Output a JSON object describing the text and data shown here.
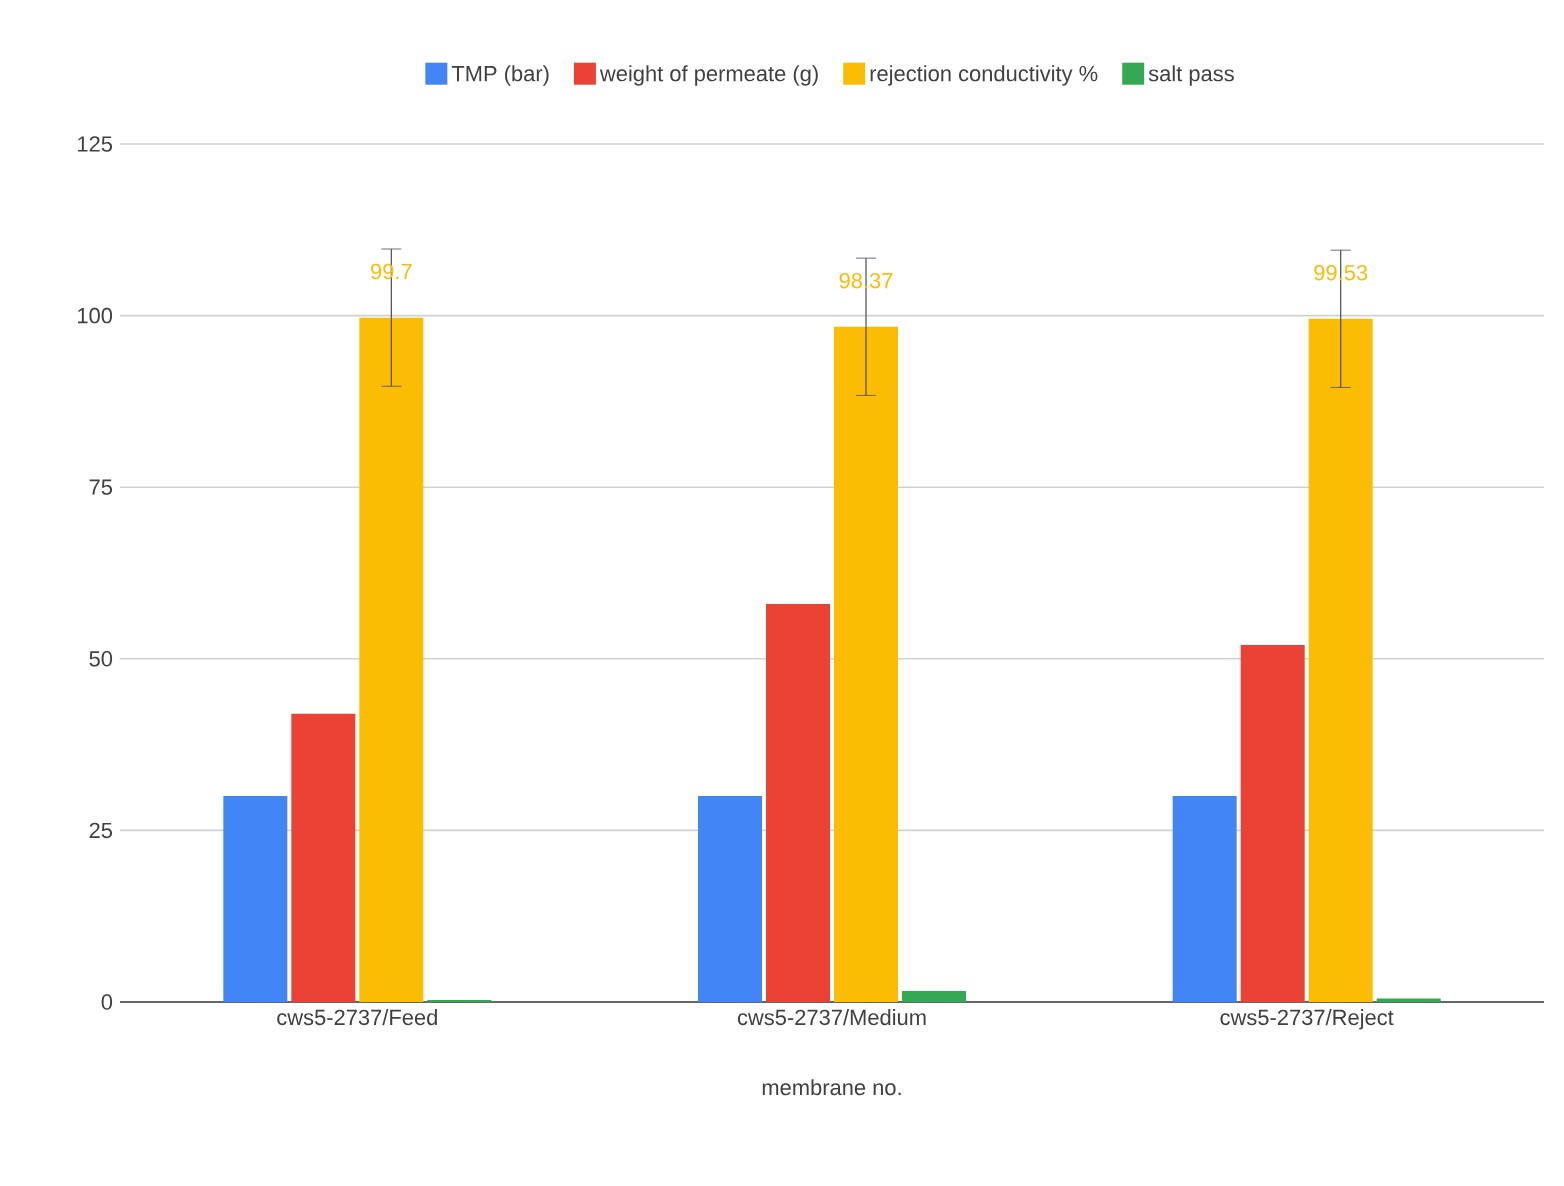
{
  "chart_data": {
    "type": "bar",
    "xlabel": "membrane no.",
    "categories": [
      "cws5-2737/Feed",
      "cws5-2737/Medium",
      "cws5-2737/Reject"
    ],
    "series": [
      {
        "name": "TMP (bar)",
        "color": "#4285f4",
        "values": [
          30,
          30,
          30
        ]
      },
      {
        "name": "weight of permeate (g)",
        "color": "#ea4335",
        "values": [
          42,
          58,
          52
        ]
      },
      {
        "name": "rejection conductivity %",
        "color": "#fbbc04",
        "values": [
          99.7,
          98.37,
          99.53
        ],
        "errors": [
          10,
          10,
          10
        ],
        "value_labels": [
          "99.7",
          "98.37",
          "99.53"
        ]
      },
      {
        "name": "salt pass",
        "color": "#34a853",
        "values": [
          0.3,
          1.6,
          0.5
        ]
      }
    ],
    "ylim": [
      0,
      125
    ],
    "yticks": [
      0,
      25,
      50,
      75,
      100,
      125
    ],
    "grid": "y",
    "legend": "top"
  }
}
